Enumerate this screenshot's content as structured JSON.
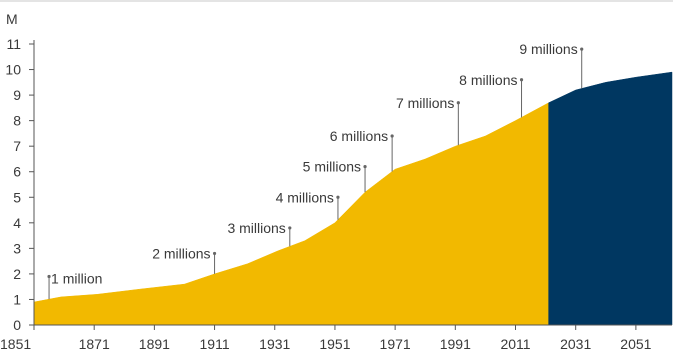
{
  "chart_data": {
    "type": "area",
    "title": "",
    "xlabel": "",
    "ylabel": "M",
    "xlim": [
      1851,
      2063
    ],
    "ylim": [
      0,
      11
    ],
    "x_ticks": [
      "1851",
      "1871",
      "1891",
      "1911",
      "1931",
      "1951",
      "1971",
      "1991",
      "2011",
      "2031",
      "2051"
    ],
    "y_ticks": [
      "0",
      "1",
      "2",
      "3",
      "4",
      "5",
      "6",
      "7",
      "8",
      "9",
      "10",
      "11"
    ],
    "grid": false,
    "series": [
      {
        "name": "",
        "color": "#f2b900",
        "x": [
          1851,
          1860,
          1872,
          1886,
          1901,
          1911,
          1922,
          1932,
          1941,
          1951,
          1961,
          1971,
          1981,
          1991,
          2001,
          2011,
          2022
        ],
        "y": [
          0.9,
          1.1,
          1.2,
          1.4,
          1.6,
          2.0,
          2.4,
          2.9,
          3.3,
          4.0,
          5.2,
          6.1,
          6.5,
          7.0,
          7.4,
          8.0,
          8.7
        ]
      },
      {
        "name": "",
        "color": "#003761",
        "x": [
          2022,
          2031,
          2041,
          2051,
          2063
        ],
        "y": [
          8.7,
          9.2,
          9.5,
          9.7,
          9.9
        ]
      }
    ],
    "annotations": [
      {
        "label": "1 million",
        "x": 1856,
        "y": 1.9
      },
      {
        "label": "2 millions",
        "x": 1911,
        "y": 2.8
      },
      {
        "label": "3 millions",
        "x": 1936,
        "y": 3.8
      },
      {
        "label": "4 millions",
        "x": 1952,
        "y": 5.0
      },
      {
        "label": "5 millions",
        "x": 1961,
        "y": 6.2
      },
      {
        "label": "6 millions",
        "x": 1970,
        "y": 7.4
      },
      {
        "label": "7 millions",
        "x": 1992,
        "y": 8.7
      },
      {
        "label": "8 millions",
        "x": 2013,
        "y": 9.6
      },
      {
        "label": "9 millions",
        "x": 2033,
        "y": 10.8
      }
    ]
  }
}
